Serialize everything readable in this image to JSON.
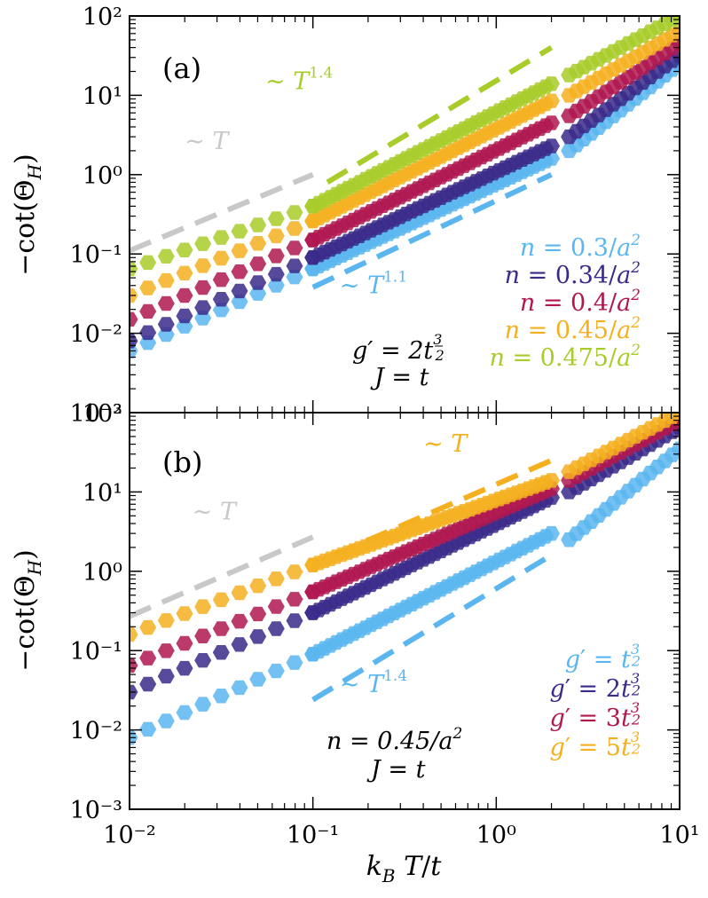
{
  "chart_data": [
    {
      "type": "scatter",
      "panel_label": "(a)",
      "xscale": "log",
      "yscale": "log",
      "xlim": [
        0.01,
        10
      ],
      "ylim": [
        0.001,
        100
      ],
      "xlabel": "",
      "ylabel": "−cot(Θ_H)",
      "x_tick_labels": [
        "",
        "",
        "",
        ""
      ],
      "y_tick_labels": [
        "10⁻³",
        "10⁻²",
        "10⁻¹",
        "10⁰",
        "10¹",
        "10²"
      ],
      "parameters_text": [
        "g′ = 2t^(3/2)",
        "J = t"
      ],
      "series": [
        {
          "name": "n = 0.3/a²",
          "color": "#5bb6f0",
          "segments": [
            {
              "x_range": [
                0.01,
                0.1
              ],
              "y": [
                0.006,
                0.065
              ]
            },
            {
              "x_range": [
                0.1,
                2.0
              ],
              "y": [
                0.065,
                1.6
              ]
            },
            {
              "x_range": [
                2.5,
                10
              ],
              "y": [
                2.0,
                25
              ]
            }
          ]
        },
        {
          "name": "n = 0.34/a²",
          "color": "#3b2a8a",
          "segments": [
            {
              "x_range": [
                0.01,
                0.1
              ],
              "y": [
                0.008,
                0.09
              ]
            },
            {
              "x_range": [
                0.1,
                2.0
              ],
              "y": [
                0.09,
                2.3
              ]
            },
            {
              "x_range": [
                2.5,
                10
              ],
              "y": [
                3.0,
                32
              ]
            }
          ]
        },
        {
          "name": "n = 0.4/a²",
          "color": "#b01850",
          "segments": [
            {
              "x_range": [
                0.01,
                0.1
              ],
              "y": [
                0.015,
                0.15
              ]
            },
            {
              "x_range": [
                0.1,
                2.0
              ],
              "y": [
                0.15,
                4.5
              ]
            },
            {
              "x_range": [
                2.5,
                10
              ],
              "y": [
                5.5,
                45
              ]
            }
          ]
        },
        {
          "name": "n = 0.45/a²",
          "color": "#f5b020",
          "segments": [
            {
              "x_range": [
                0.01,
                0.1
              ],
              "y": [
                0.03,
                0.26
              ]
            },
            {
              "x_range": [
                0.1,
                2.0
              ],
              "y": [
                0.26,
                8.5
              ]
            },
            {
              "x_range": [
                2.5,
                10
              ],
              "y": [
                10,
                65
              ]
            }
          ]
        },
        {
          "name": "n = 0.475/a²",
          "color": "#a8cc2a",
          "segments": [
            {
              "x_range": [
                0.01,
                0.1
              ],
              "y": [
                0.065,
                0.4
              ]
            },
            {
              "x_range": [
                0.1,
                2.0
              ],
              "y": [
                0.4,
                14
              ]
            },
            {
              "x_range": [
                2.5,
                10
              ],
              "y": [
                18,
                100
              ]
            }
          ]
        }
      ],
      "guide_lines": [
        {
          "label": "∼ T",
          "base": "T",
          "exp": "",
          "color": "#c8c8c8",
          "x": [
            0.01,
            0.1
          ],
          "y": [
            0.11,
            1.0
          ],
          "label_at": [
            0.02,
            2.1
          ],
          "anchor": "start"
        },
        {
          "label": "∼ T^1.4",
          "base": "T",
          "exp": "1.4",
          "color": "#a8cc2a",
          "x": [
            0.12,
            2.0
          ],
          "y": [
            0.8,
            40
          ],
          "label_at": [
            0.055,
            12
          ],
          "anchor": "start"
        },
        {
          "label": "∼ T^1.1",
          "base": "T",
          "exp": "1.1",
          "color": "#5bb6f0",
          "x": [
            0.1,
            2.0
          ],
          "y": [
            0.038,
            1.0
          ],
          "label_at": [
            0.14,
            0.032
          ],
          "anchor": "start"
        }
      ]
    },
    {
      "type": "scatter",
      "panel_label": "(b)",
      "xscale": "log",
      "yscale": "log",
      "xlim": [
        0.01,
        10
      ],
      "ylim": [
        0.001,
        100
      ],
      "xlabel": "k_B T/t",
      "ylabel": "−cot(Θ_H)",
      "x_tick_labels": [
        "10⁻²",
        "10⁻¹",
        "10⁰",
        "10¹"
      ],
      "y_tick_labels": [
        "10⁻³",
        "10⁻²",
        "10⁻¹",
        "10⁰",
        "10¹",
        "10²"
      ],
      "parameters_text": [
        "n = 0.45/a²",
        "J = t"
      ],
      "series": [
        {
          "name": "g′ = t^(3/2)",
          "color": "#5bb6f0",
          "segments": [
            {
              "x_range": [
                0.01,
                0.1
              ],
              "y": [
                0.008,
                0.09
              ]
            },
            {
              "x_range": [
                0.1,
                2.0
              ],
              "y": [
                0.09,
                3.0
              ]
            },
            {
              "x_range": [
                2.5,
                10
              ],
              "y": [
                2.5,
                35
              ]
            }
          ]
        },
        {
          "name": "g′ = 2t^(3/2)",
          "color": "#3b2a8a",
          "segments": [
            {
              "x_range": [
                0.01,
                0.1
              ],
              "y": [
                0.03,
                0.3
              ]
            },
            {
              "x_range": [
                0.1,
                2.0
              ],
              "y": [
                0.3,
                8.5
              ]
            },
            {
              "x_range": [
                2.5,
                10
              ],
              "y": [
                10,
                65
              ]
            }
          ]
        },
        {
          "name": "g′ = 3t^(3/2)",
          "color": "#b01850",
          "segments": [
            {
              "x_range": [
                0.01,
                0.1
              ],
              "y": [
                0.065,
                0.55
              ]
            },
            {
              "x_range": [
                0.1,
                2.0
              ],
              "y": [
                0.55,
                11
              ]
            },
            {
              "x_range": [
                2.5,
                10
              ],
              "y": [
                14,
                80
              ]
            }
          ]
        },
        {
          "name": "g′ = 5t^(3/2)",
          "color": "#f5b020",
          "segments": [
            {
              "x_range": [
                0.01,
                0.1
              ],
              "y": [
                0.16,
                1.2
              ]
            },
            {
              "x_range": [
                0.1,
                2.0
              ],
              "y": [
                1.2,
                14
              ]
            },
            {
              "x_range": [
                2.5,
                10
              ],
              "y": [
                18,
                100
              ]
            }
          ]
        }
      ],
      "guide_lines": [
        {
          "label": "∼ T",
          "base": "T",
          "exp": "",
          "color": "#c8c8c8",
          "x": [
            0.01,
            0.1
          ],
          "y": [
            0.27,
            2.7
          ],
          "label_at": [
            0.022,
            4.5
          ],
          "anchor": "start"
        },
        {
          "label": "∼ T",
          "base": "T",
          "exp": "",
          "color": "#f5b020",
          "x": [
            0.13,
            2.0
          ],
          "y": [
            1.6,
            25
          ],
          "label_at": [
            0.4,
            32
          ],
          "anchor": "start"
        },
        {
          "label": "∼ T^1.4",
          "base": "T",
          "exp": "1.4",
          "color": "#5bb6f0",
          "x": [
            0.1,
            2.0
          ],
          "y": [
            0.024,
            1.6
          ],
          "label_at": [
            0.14,
            0.03
          ],
          "anchor": "start"
        }
      ]
    }
  ],
  "legends": [
    {
      "items": [
        {
          "label": "n = 0.3/a²",
          "color": "#5bb6f0"
        },
        {
          "label": "n = 0.34/a²",
          "color": "#3b2a8a"
        },
        {
          "label": "n = 0.4/a²",
          "color": "#b01850"
        },
        {
          "label": "n = 0.45/a²",
          "color": "#f5b020"
        },
        {
          "label": "n = 0.475/a²",
          "color": "#a8cc2a"
        }
      ]
    },
    {
      "items": [
        {
          "label": "g′ = t^(3/2)",
          "color": "#5bb6f0"
        },
        {
          "label": "g′ = 2t^(3/2)",
          "color": "#3b2a8a"
        },
        {
          "label": "g′ = 3t^(3/2)",
          "color": "#b01850"
        },
        {
          "label": "g′ = 5t^(3/2)",
          "color": "#f5b020"
        }
      ]
    }
  ]
}
